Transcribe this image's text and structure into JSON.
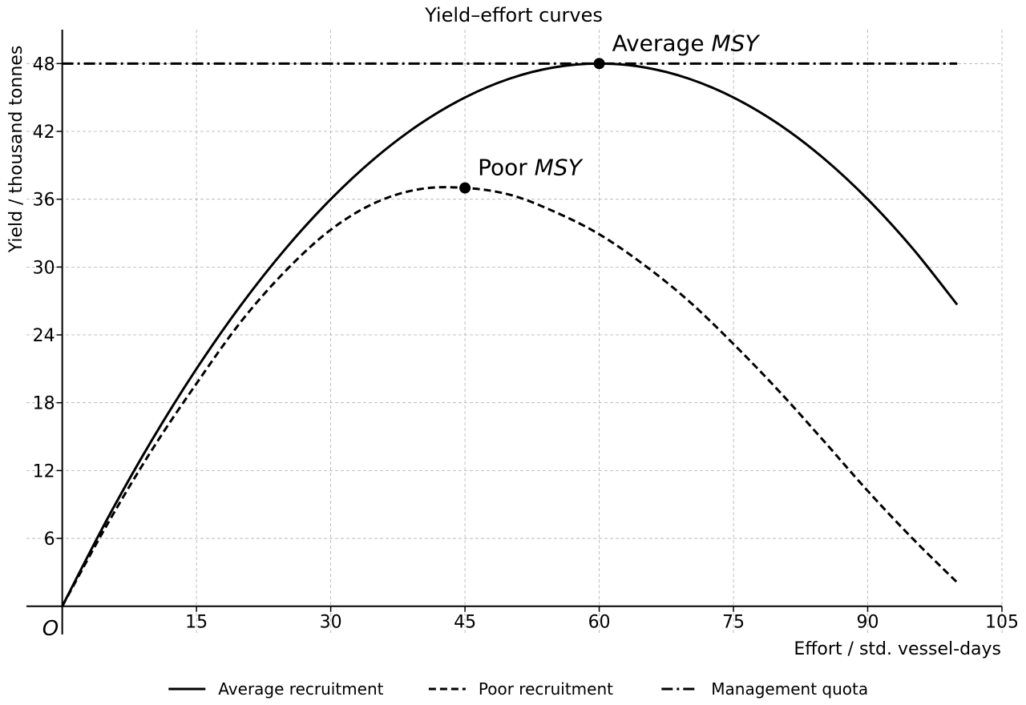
{
  "chart_data": {
    "type": "line",
    "title": "Yield–effort curves",
    "xlabel": "Effort / std. vessel-days",
    "ylabel": "Yield / thousand tonnes",
    "origin_label": "O",
    "xlim": [
      -4,
      105
    ],
    "ylim": [
      -2.5,
      51
    ],
    "xticks": [
      15,
      30,
      45,
      60,
      75,
      90,
      105
    ],
    "yticks": [
      6,
      12,
      18,
      24,
      30,
      36,
      42,
      48
    ],
    "grid": true,
    "legend_position": "bottom",
    "series": [
      {
        "name": "Average recruitment",
        "style": "solid",
        "x": [
          0,
          5,
          10,
          15,
          20,
          25,
          30,
          35,
          40,
          45,
          50,
          55,
          60,
          65,
          70,
          75,
          80,
          85,
          90,
          95,
          100
        ],
        "values": [
          0,
          7.67,
          14.67,
          21.0,
          26.67,
          31.67,
          36.0,
          39.67,
          42.67,
          45.0,
          46.67,
          47.67,
          48.0,
          47.67,
          46.67,
          45.0,
          42.67,
          39.67,
          36.0,
          31.67,
          26.67
        ]
      },
      {
        "name": "Poor recruitment",
        "style": "dashed",
        "x": [
          0,
          5,
          10,
          15,
          20,
          25,
          30,
          35,
          40,
          45,
          50,
          55,
          60,
          65,
          70,
          75,
          80,
          85,
          90,
          95,
          100
        ],
        "values": [
          0,
          7.2,
          13.8,
          19.7,
          25.2,
          29.7,
          33.3,
          35.7,
          36.9,
          37.0,
          36.4,
          34.9,
          32.9,
          30.2,
          27.0,
          23.2,
          19.1,
          14.7,
          10.2,
          6.0,
          2.1
        ]
      },
      {
        "name": "Management quota",
        "style": "dashdot",
        "x": [
          0,
          100
        ],
        "values": [
          48,
          48
        ]
      }
    ],
    "annotations": [
      {
        "label": "Average ",
        "label_italic": "MSY",
        "x": 60,
        "y": 48
      },
      {
        "label": "Poor ",
        "label_italic": "MSY",
        "x": 45,
        "y": 37
      }
    ]
  }
}
